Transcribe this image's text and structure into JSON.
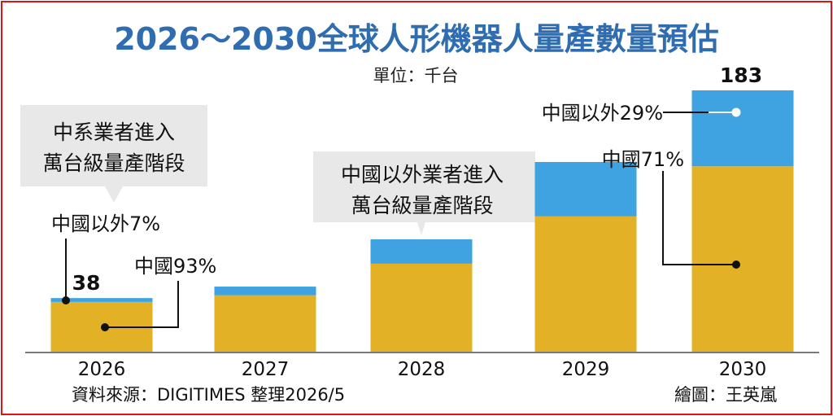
{
  "title": "2026～2030全球人形機器人量產數量預估",
  "unit_label": "單位：千台",
  "source_label": "資料來源：DIGITIMES 整理2026/5",
  "credit_label": "繪圖：王英嵐",
  "callouts": {
    "left": [
      "中系業者進入",
      "萬台級量產階段"
    ],
    "mid": [
      "中國以外業者進入",
      "萬台級量產階段"
    ]
  },
  "annotations": {
    "outside_2026": "中國以外7%",
    "china_2026": "中國93%",
    "outside_2030": "中國以外29%",
    "china_2030": "中國71%"
  },
  "colors": {
    "china": "#e3b126",
    "outside": "#3ea3e0",
    "title": "#2f6db0",
    "callout_fill": "#e8e8e8",
    "border": "#d9141b"
  },
  "chart_data": {
    "type": "bar",
    "stacked": true,
    "categories": [
      "2026",
      "2027",
      "2028",
      "2029",
      "2030"
    ],
    "series": [
      {
        "name": "中國",
        "values": [
          35.3,
          40,
          62,
          95,
          130
        ]
      },
      {
        "name": "中國以外",
        "values": [
          2.7,
          6,
          17,
          38,
          53
        ]
      }
    ],
    "totals": [
      38,
      46,
      79,
      133,
      183
    ],
    "total_labels": {
      "2026": "38",
      "2030": "183"
    },
    "ylim": [
      0,
      190
    ]
  }
}
